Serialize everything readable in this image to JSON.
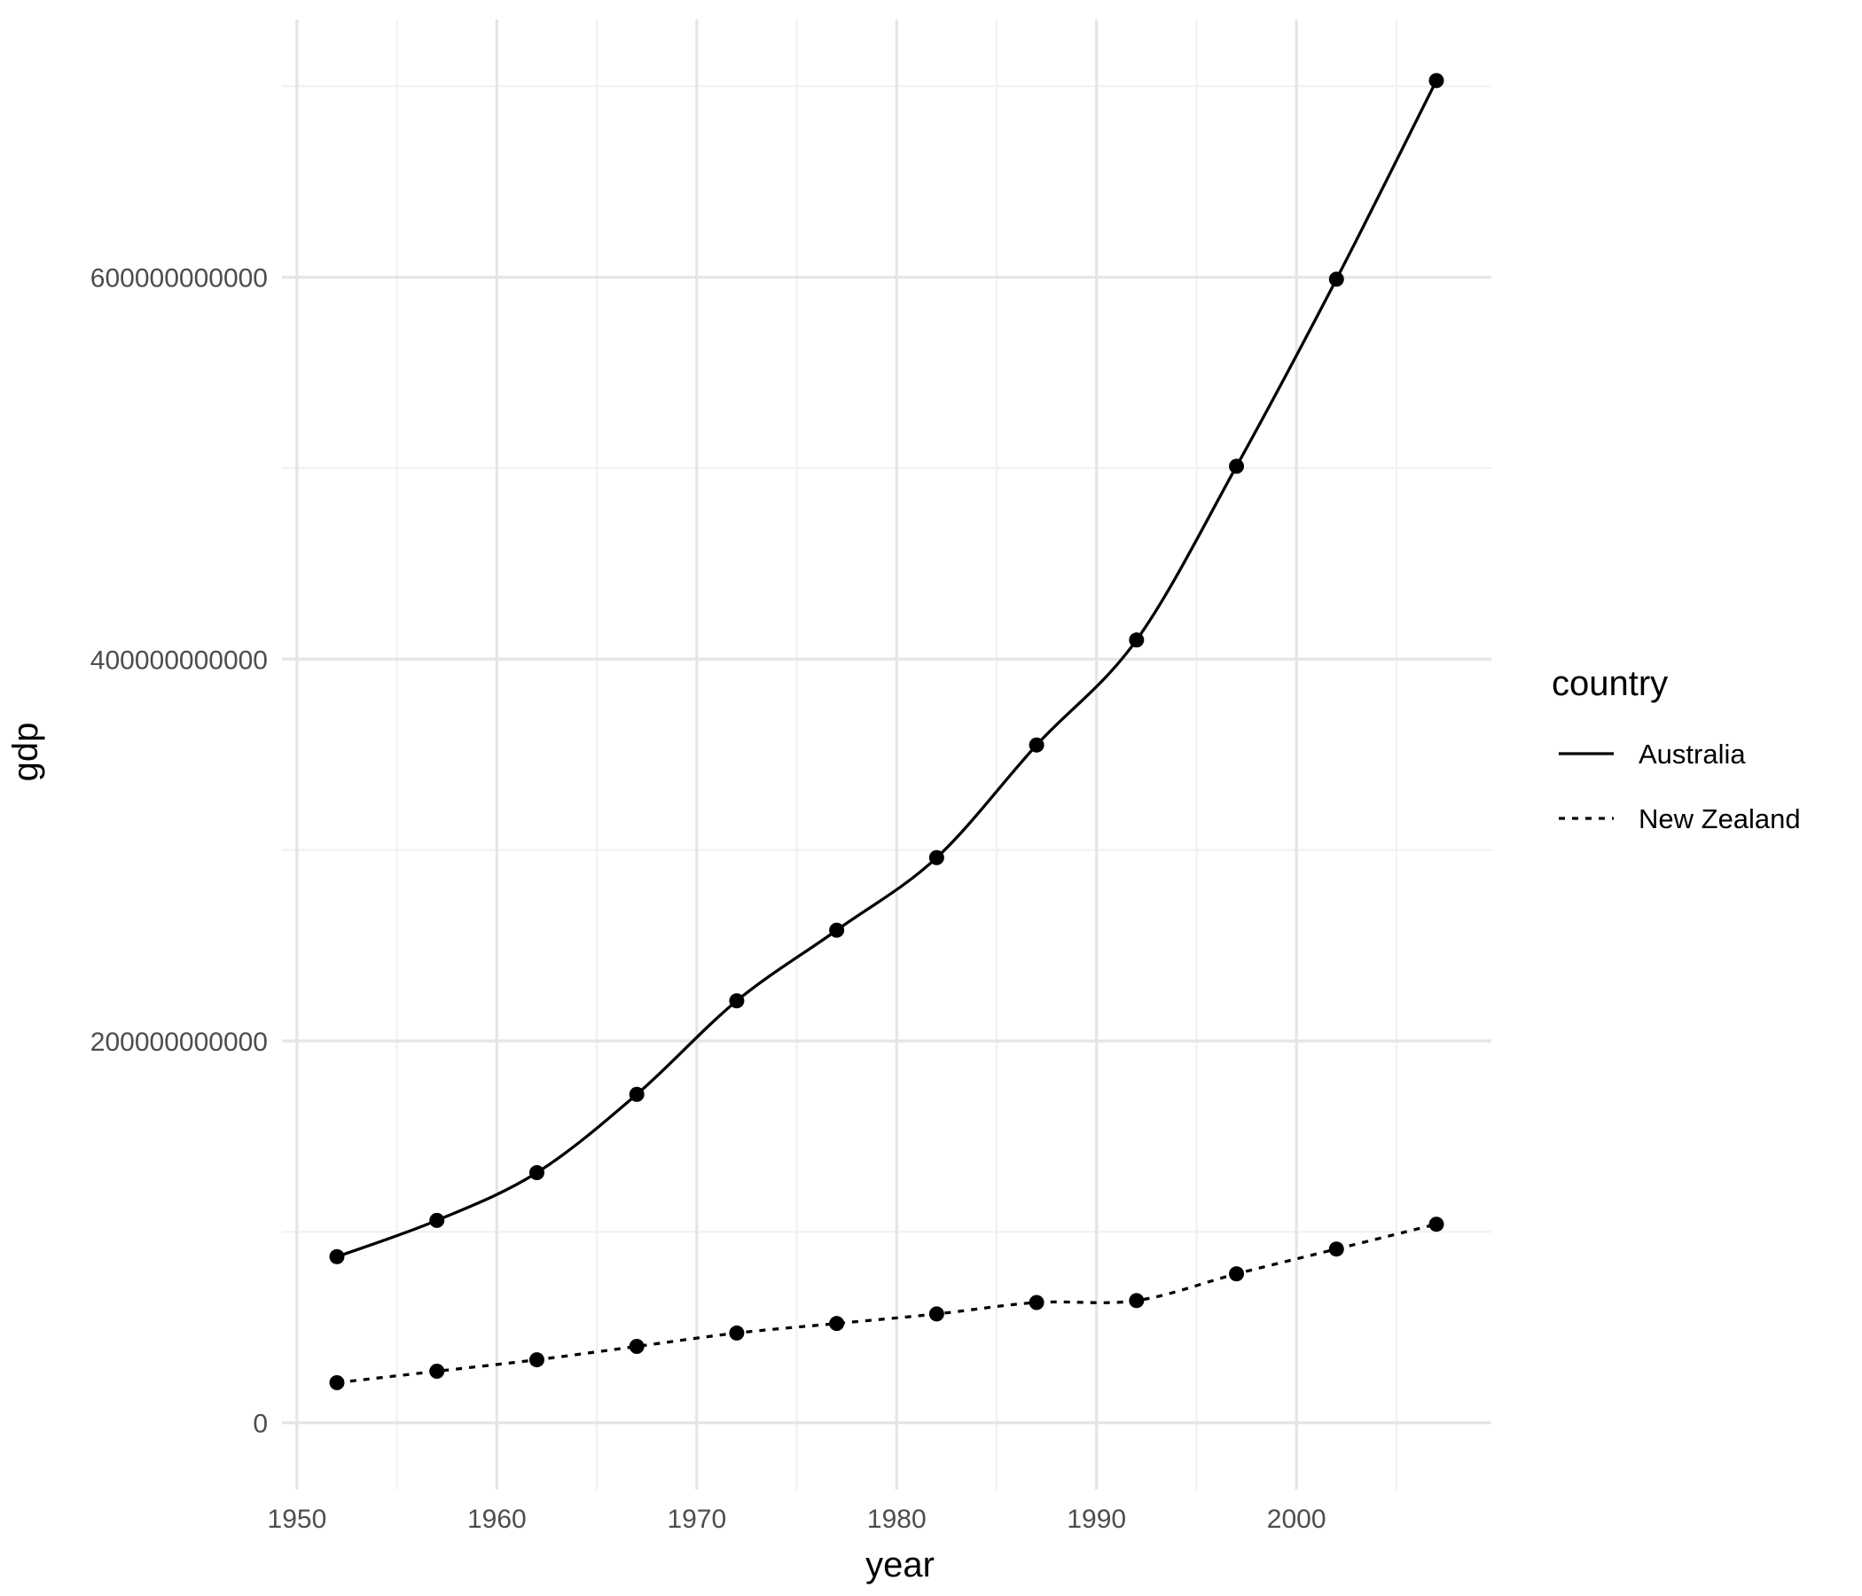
{
  "chart_data": {
    "type": "line",
    "title": "",
    "xlabel": "year",
    "ylabel": "gdp",
    "xlim": [
      1949.25,
      2009.75
    ],
    "ylim": [
      -35000000000,
      735000000000
    ],
    "x_ticks": [
      1950,
      1960,
      1970,
      1980,
      1990,
      2000
    ],
    "x_tick_labels": [
      "1950",
      "1960",
      "1970",
      "1980",
      "1990",
      "2000"
    ],
    "y_ticks": [
      0,
      200000000000,
      400000000000,
      600000000000
    ],
    "y_tick_labels": [
      "0",
      "200000000000",
      "400000000000",
      "600000000000"
    ],
    "grid": true,
    "legend": {
      "title": "country",
      "position": "right"
    },
    "x": [
      1952,
      1957,
      1962,
      1967,
      1972,
      1977,
      1982,
      1987,
      1992,
      1997,
      2002,
      2007
    ],
    "series": [
      {
        "name": "Australia",
        "line_style": "solid",
        "values": [
          87000000000,
          106000000000,
          131000000000,
          172000000000,
          221000000000,
          258000000000,
          296000000000,
          355000000000,
          410000000000,
          501000000000,
          599000000000,
          703000000000
        ]
      },
      {
        "name": "New Zealand",
        "line_style": "dotted",
        "values": [
          21000000000,
          27000000000,
          33000000000,
          40000000000,
          47000000000,
          52000000000,
          57000000000,
          63000000000,
          64000000000,
          78000000000,
          91000000000,
          104000000000
        ]
      }
    ],
    "colors": {
      "line": "#000000",
      "grid_major": "#e5e5e5",
      "grid_minor": "#f0f0f0",
      "background": "#ffffff"
    }
  }
}
